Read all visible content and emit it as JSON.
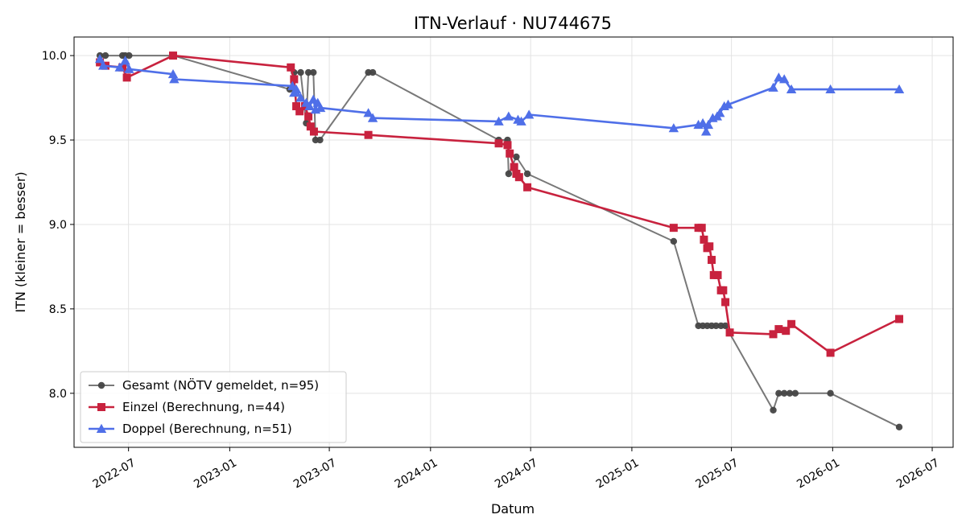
{
  "chart_data": {
    "type": "line",
    "title": "ITN-Verlauf · NU744675",
    "xlabel": "Datum",
    "ylabel": "ITN  (kleiner = besser)",
    "x_type": "date",
    "xlim": [
      "2022-03-24",
      "2026-08-08"
    ],
    "ylim": [
      7.68,
      10.11
    ],
    "x_ticks": [
      "2022-07-01",
      "2023-01-01",
      "2023-07-01",
      "2024-01-01",
      "2024-07-01",
      "2025-01-01",
      "2025-07-01",
      "2026-01-01",
      "2026-07-01"
    ],
    "x_tick_labels": [
      "2022-07",
      "2023-01",
      "2023-07",
      "2024-01",
      "2024-07",
      "2025-01",
      "2025-07",
      "2026-01",
      "2026-07"
    ],
    "y_ticks": [
      8.0,
      8.5,
      9.0,
      9.5,
      10.0
    ],
    "y_tick_labels": [
      "8.0",
      "8.5",
      "9.0",
      "9.5",
      "10.0"
    ],
    "grid": true,
    "legend_position": "lower-left",
    "series": [
      {
        "name": "Gesamt (NÖTV gemeldet, n=95)",
        "color": "#444444",
        "marker": "circle",
        "points": [
          [
            "2022-05-10",
            10.0
          ],
          [
            "2022-05-20",
            10.0
          ],
          [
            "2022-06-20",
            10.0
          ],
          [
            "2022-06-25",
            10.0
          ],
          [
            "2022-07-02",
            10.0
          ],
          [
            "2022-09-20",
            10.0
          ],
          [
            "2023-04-20",
            9.8
          ],
          [
            "2023-04-28",
            9.9
          ],
          [
            "2023-05-10",
            9.9
          ],
          [
            "2023-05-20",
            9.6
          ],
          [
            "2023-05-24",
            9.9
          ],
          [
            "2023-06-02",
            9.9
          ],
          [
            "2023-06-06",
            9.5
          ],
          [
            "2023-06-14",
            9.5
          ],
          [
            "2023-09-10",
            9.9
          ],
          [
            "2023-09-18",
            9.9
          ],
          [
            "2024-05-04",
            9.5
          ],
          [
            "2024-05-20",
            9.5
          ],
          [
            "2024-05-22",
            9.3
          ],
          [
            "2024-06-05",
            9.4
          ],
          [
            "2024-06-25",
            9.3
          ],
          [
            "2025-03-18",
            8.9
          ],
          [
            "2025-05-02",
            8.4
          ],
          [
            "2025-05-10",
            8.4
          ],
          [
            "2025-05-18",
            8.4
          ],
          [
            "2025-05-26",
            8.4
          ],
          [
            "2025-06-03",
            8.4
          ],
          [
            "2025-06-12",
            8.4
          ],
          [
            "2025-06-20",
            8.4
          ],
          [
            "2025-09-15",
            7.9
          ],
          [
            "2025-09-25",
            8.0
          ],
          [
            "2025-10-05",
            8.0
          ],
          [
            "2025-10-15",
            8.0
          ],
          [
            "2025-10-25",
            8.0
          ],
          [
            "2025-12-28",
            8.0
          ],
          [
            "2026-05-02",
            7.8
          ]
        ]
      },
      {
        "name": "Einzel (Berechnung, n=44)",
        "color": "#c8223e",
        "marker": "square",
        "points": [
          [
            "2022-05-10",
            9.96
          ],
          [
            "2022-05-20",
            9.94
          ],
          [
            "2022-06-20",
            9.93
          ],
          [
            "2022-06-28",
            9.87
          ],
          [
            "2022-09-20",
            10.0
          ],
          [
            "2023-04-22",
            9.93
          ],
          [
            "2023-04-28",
            9.86
          ],
          [
            "2023-05-02",
            9.7
          ],
          [
            "2023-05-08",
            9.67
          ],
          [
            "2023-05-18",
            9.7
          ],
          [
            "2023-05-24",
            9.64
          ],
          [
            "2023-05-28",
            9.58
          ],
          [
            "2023-06-03",
            9.55
          ],
          [
            "2023-09-10",
            9.53
          ],
          [
            "2024-05-04",
            9.48
          ],
          [
            "2024-05-20",
            9.47
          ],
          [
            "2024-05-24",
            9.42
          ],
          [
            "2024-06-01",
            9.34
          ],
          [
            "2024-06-05",
            9.3
          ],
          [
            "2024-06-10",
            9.28
          ],
          [
            "2024-06-25",
            9.22
          ],
          [
            "2025-03-18",
            8.98
          ],
          [
            "2025-05-02",
            8.98
          ],
          [
            "2025-05-08",
            8.98
          ],
          [
            "2025-05-12",
            8.91
          ],
          [
            "2025-05-18",
            8.86
          ],
          [
            "2025-05-22",
            8.87
          ],
          [
            "2025-05-26",
            8.79
          ],
          [
            "2025-05-30",
            8.7
          ],
          [
            "2025-06-06",
            8.7
          ],
          [
            "2025-06-12",
            8.61
          ],
          [
            "2025-06-16",
            8.61
          ],
          [
            "2025-06-20",
            8.54
          ],
          [
            "2025-06-28",
            8.36
          ],
          [
            "2025-09-15",
            8.35
          ],
          [
            "2025-09-25",
            8.38
          ],
          [
            "2025-10-08",
            8.37
          ],
          [
            "2025-10-18",
            8.41
          ],
          [
            "2025-12-28",
            8.24
          ],
          [
            "2026-05-02",
            8.44
          ]
        ]
      },
      {
        "name": "Doppel (Berechnung, n=51)",
        "color": "#4f6fe8",
        "marker": "triangle",
        "points": [
          [
            "2022-05-10",
            9.98
          ],
          [
            "2022-05-16",
            9.94
          ],
          [
            "2022-06-15",
            9.93
          ],
          [
            "2022-06-25",
            9.97
          ],
          [
            "2022-07-02",
            9.92
          ],
          [
            "2022-09-20",
            9.89
          ],
          [
            "2022-09-22",
            9.86
          ],
          [
            "2023-04-25",
            9.82
          ],
          [
            "2023-04-28",
            9.78
          ],
          [
            "2023-05-02",
            9.8
          ],
          [
            "2023-05-10",
            9.75
          ],
          [
            "2023-05-20",
            9.72
          ],
          [
            "2023-05-26",
            9.7
          ],
          [
            "2023-06-02",
            9.74
          ],
          [
            "2023-06-06",
            9.68
          ],
          [
            "2023-06-10",
            9.72
          ],
          [
            "2023-06-15",
            9.69
          ],
          [
            "2023-09-10",
            9.66
          ],
          [
            "2023-09-18",
            9.63
          ],
          [
            "2024-05-04",
            9.61
          ],
          [
            "2024-05-22",
            9.64
          ],
          [
            "2024-06-08",
            9.62
          ],
          [
            "2024-06-14",
            9.61
          ],
          [
            "2024-06-28",
            9.65
          ],
          [
            "2025-03-18",
            9.57
          ],
          [
            "2025-05-02",
            9.59
          ],
          [
            "2025-05-10",
            9.6
          ],
          [
            "2025-05-16",
            9.55
          ],
          [
            "2025-05-20",
            9.59
          ],
          [
            "2025-05-28",
            9.63
          ],
          [
            "2025-06-05",
            9.64
          ],
          [
            "2025-06-10",
            9.66
          ],
          [
            "2025-06-18",
            9.7
          ],
          [
            "2025-06-25",
            9.71
          ],
          [
            "2025-09-15",
            9.81
          ],
          [
            "2025-09-25",
            9.87
          ],
          [
            "2025-10-05",
            9.86
          ],
          [
            "2025-10-18",
            9.8
          ],
          [
            "2025-12-28",
            9.8
          ],
          [
            "2026-05-02",
            9.8
          ]
        ]
      }
    ]
  }
}
